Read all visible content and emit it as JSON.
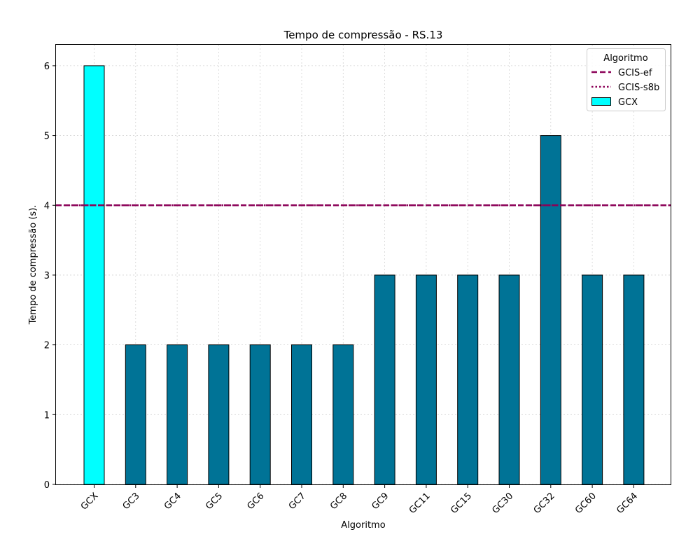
{
  "chart_data": {
    "type": "bar",
    "title": "Tempo de compressão -  RS.13",
    "xlabel": "Algoritmo",
    "ylabel": "Tempo de compressão (s).",
    "categories": [
      "GCX",
      "GC3",
      "GC4",
      "GC5",
      "GC6",
      "GC7",
      "GC8",
      "GC9",
      "GC11",
      "GC15",
      "GC30",
      "GC32",
      "GC60",
      "GC64"
    ],
    "values": [
      6,
      2,
      2,
      2,
      2,
      2,
      2,
      3,
      3,
      3,
      3,
      5,
      3,
      3
    ],
    "bar_colors": [
      "#00ffff",
      "#007396",
      "#007396",
      "#007396",
      "#007396",
      "#007396",
      "#007396",
      "#007396",
      "#007396",
      "#007396",
      "#007396",
      "#007396",
      "#007396",
      "#007396"
    ],
    "edge_color": "#000000",
    "ylim": [
      0,
      6.3
    ],
    "yticks": [
      0,
      1,
      2,
      3,
      4,
      5,
      6
    ],
    "reference_lines": [
      {
        "name": "GCIS-ef",
        "value": 4,
        "style": "dashed",
        "color": "#8b0057"
      },
      {
        "name": "GCIS-s8b",
        "value": 4,
        "style": "dotted",
        "color": "#8b0057"
      }
    ],
    "grid": true,
    "legend": {
      "title": "Algoritmo",
      "placement": "top-right",
      "entries": [
        {
          "label": "GCIS-ef",
          "kind": "dashed-line",
          "color": "#8b0057"
        },
        {
          "label": "GCIS-s8b",
          "kind": "dotted-line",
          "color": "#8b0057"
        },
        {
          "label": "GCX",
          "kind": "patch",
          "color": "#00ffff"
        }
      ]
    }
  }
}
